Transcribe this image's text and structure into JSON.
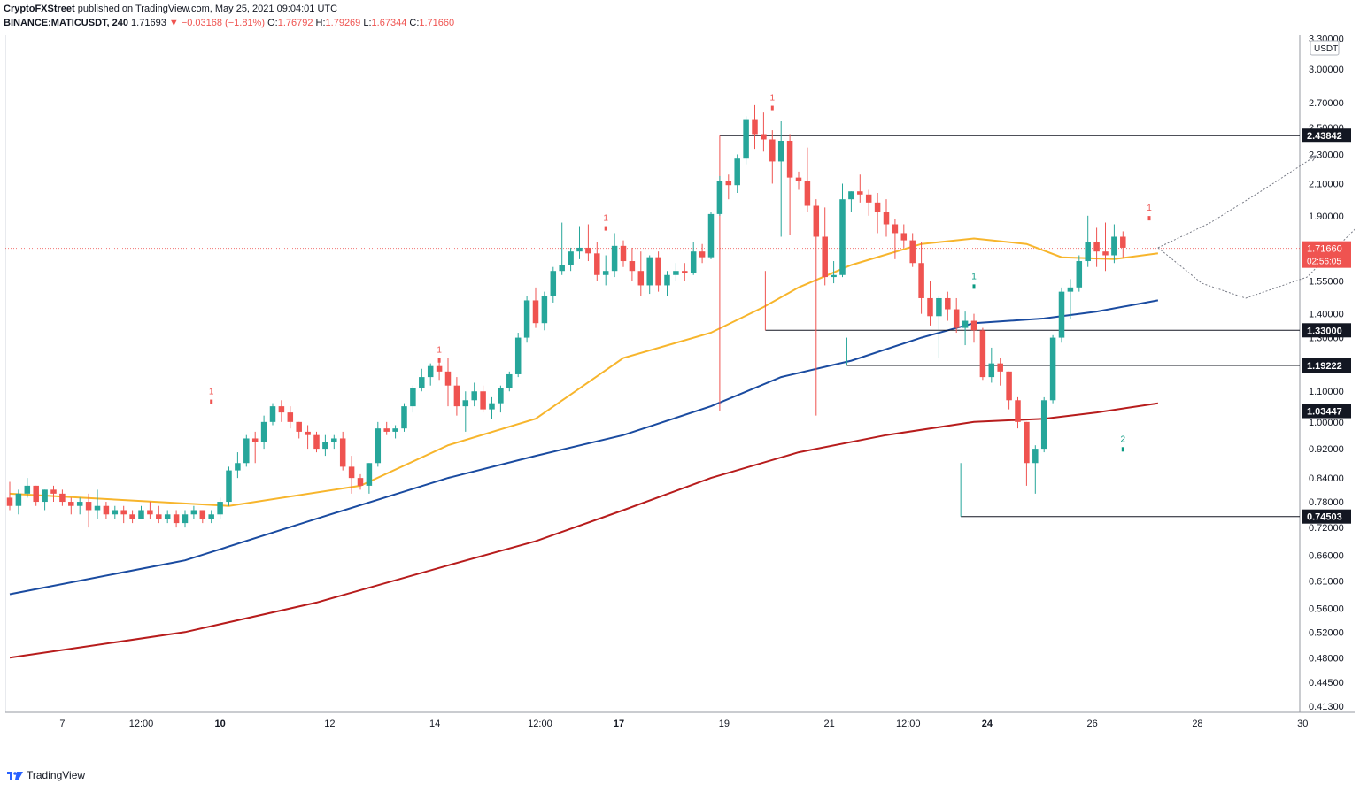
{
  "header": {
    "publisher": "CryptoFXStreet",
    "published_text": " published on TradingView.com, May 25, 2021 09:04:01 UTC",
    "symbol": "BINANCE:MATICUSDT, 240",
    "last": "1.71693",
    "change": "▼ −0.03168 (−1.81%)",
    "o_label": "O:",
    "o_value": "1.76792",
    "h_label": "H:",
    "h_value": "1.79269",
    "l_label": "L:",
    "l_value": "1.67344",
    "c_label": "C:",
    "c_value": "1.71660"
  },
  "footer": {
    "brand": "TradingView",
    "logo_icon": "tradingview-logo-icon"
  },
  "chart_data": {
    "type": "candlestick",
    "currency_label": "USDT",
    "y_scale": "log",
    "y_ticks": [
      "3.30000",
      "3.00000",
      "2.70000",
      "2.50000",
      "2.30000",
      "2.10000",
      "1.90000",
      "1.55000",
      "1.40000",
      "1.30000",
      "1.10000",
      "1.00000",
      "0.92000",
      "0.84000",
      "0.78000",
      "0.72000",
      "0.66000",
      "0.61000",
      "0.56000",
      "0.52000",
      "0.48000",
      "0.44500",
      "0.41300"
    ],
    "x_ticks": [
      "7",
      "12:00",
      "10",
      "12",
      "14",
      "12:00",
      "17",
      "19",
      "21",
      "12:00",
      "24",
      "26",
      "28",
      "30"
    ],
    "bold_x_ticks": [
      "10",
      "17",
      "24"
    ],
    "price_label": {
      "value": "1.71660",
      "countdown": "02:56:05",
      "color": "#ef5350"
    },
    "levels": [
      {
        "label": "2.43842",
        "value": 2.43842,
        "x_start": "May 19 12:00"
      },
      {
        "label": "1.33000",
        "value": 1.33,
        "x_start": "May 20 08:00"
      },
      {
        "label": "1.19222",
        "value": 1.19222,
        "x_start": "May 21 20:00"
      },
      {
        "label": "1.03447",
        "value": 1.03447,
        "x_start": "May 19 12:00"
      },
      {
        "label": "0.74503",
        "value": 0.74503,
        "x_start": "May 23 16:00"
      }
    ],
    "candle_interval_hours": 4,
    "first_candle": "May 6 00:00",
    "candles": [
      [
        0.79,
        0.83,
        0.76,
        0.77
      ],
      [
        0.77,
        0.81,
        0.75,
        0.8
      ],
      [
        0.8,
        0.84,
        0.79,
        0.82
      ],
      [
        0.82,
        0.82,
        0.77,
        0.78
      ],
      [
        0.78,
        0.81,
        0.76,
        0.81
      ],
      [
        0.81,
        0.82,
        0.78,
        0.8
      ],
      [
        0.8,
        0.81,
        0.77,
        0.78
      ],
      [
        0.78,
        0.79,
        0.75,
        0.77
      ],
      [
        0.77,
        0.79,
        0.75,
        0.78
      ],
      [
        0.78,
        0.8,
        0.72,
        0.76
      ],
      [
        0.76,
        0.81,
        0.74,
        0.77
      ],
      [
        0.77,
        0.78,
        0.74,
        0.75
      ],
      [
        0.75,
        0.77,
        0.74,
        0.76
      ],
      [
        0.76,
        0.77,
        0.73,
        0.75
      ],
      [
        0.75,
        0.76,
        0.73,
        0.74
      ],
      [
        0.74,
        0.77,
        0.74,
        0.76
      ],
      [
        0.76,
        0.78,
        0.74,
        0.75
      ],
      [
        0.75,
        0.77,
        0.73,
        0.74
      ],
      [
        0.74,
        0.76,
        0.73,
        0.75
      ],
      [
        0.75,
        0.76,
        0.72,
        0.73
      ],
      [
        0.73,
        0.76,
        0.72,
        0.75
      ],
      [
        0.75,
        0.77,
        0.74,
        0.76
      ],
      [
        0.76,
        0.76,
        0.73,
        0.74
      ],
      [
        0.74,
        0.76,
        0.73,
        0.75
      ],
      [
        0.75,
        0.79,
        0.74,
        0.78
      ],
      [
        0.78,
        0.87,
        0.77,
        0.86
      ],
      [
        0.86,
        0.91,
        0.84,
        0.88
      ],
      [
        0.88,
        0.96,
        0.87,
        0.95
      ],
      [
        0.95,
        0.97,
        0.88,
        0.94
      ],
      [
        0.94,
        1.02,
        0.92,
        1.0
      ],
      [
        1.0,
        1.06,
        0.99,
        1.05
      ],
      [
        1.05,
        1.07,
        1.0,
        1.03
      ],
      [
        1.03,
        1.05,
        0.98,
        1.0
      ],
      [
        1.0,
        1.0,
        0.95,
        0.97
      ],
      [
        0.97,
        0.99,
        0.92,
        0.96
      ],
      [
        0.96,
        0.97,
        0.91,
        0.92
      ],
      [
        0.92,
        0.96,
        0.9,
        0.94
      ],
      [
        0.94,
        0.96,
        0.92,
        0.95
      ],
      [
        0.95,
        0.97,
        0.86,
        0.87
      ],
      [
        0.87,
        0.9,
        0.8,
        0.84
      ],
      [
        0.84,
        0.85,
        0.81,
        0.82
      ],
      [
        0.82,
        0.88,
        0.8,
        0.88
      ],
      [
        0.88,
        1.0,
        0.87,
        0.98
      ],
      [
        0.98,
        1.0,
        0.96,
        0.97
      ],
      [
        0.97,
        0.99,
        0.95,
        0.98
      ],
      [
        0.98,
        1.06,
        0.97,
        1.05
      ],
      [
        1.05,
        1.12,
        1.03,
        1.11
      ],
      [
        1.11,
        1.18,
        1.1,
        1.15
      ],
      [
        1.15,
        1.2,
        1.12,
        1.19
      ],
      [
        1.19,
        1.22,
        1.14,
        1.17
      ],
      [
        1.17,
        1.22,
        1.05,
        1.12
      ],
      [
        1.12,
        1.15,
        1.02,
        1.05
      ],
      [
        1.05,
        1.1,
        0.97,
        1.07
      ],
      [
        1.07,
        1.13,
        1.05,
        1.1
      ],
      [
        1.1,
        1.12,
        1.03,
        1.04
      ],
      [
        1.04,
        1.08,
        1.01,
        1.06
      ],
      [
        1.06,
        1.12,
        1.03,
        1.11
      ],
      [
        1.11,
        1.17,
        1.1,
        1.16
      ],
      [
        1.16,
        1.32,
        1.15,
        1.3
      ],
      [
        1.3,
        1.48,
        1.28,
        1.46
      ],
      [
        1.46,
        1.52,
        1.34,
        1.36
      ],
      [
        1.36,
        1.5,
        1.33,
        1.48
      ],
      [
        1.48,
        1.62,
        1.45,
        1.6
      ],
      [
        1.6,
        1.86,
        1.58,
        1.63
      ],
      [
        1.63,
        1.72,
        1.6,
        1.7
      ],
      [
        1.7,
        1.84,
        1.66,
        1.72
      ],
      [
        1.72,
        1.85,
        1.65,
        1.69
      ],
      [
        1.69,
        1.75,
        1.55,
        1.58
      ],
      [
        1.58,
        1.68,
        1.53,
        1.6
      ],
      [
        1.6,
        1.8,
        1.57,
        1.73
      ],
      [
        1.73,
        1.76,
        1.62,
        1.65
      ],
      [
        1.65,
        1.72,
        1.55,
        1.6
      ],
      [
        1.6,
        1.7,
        1.48,
        1.53
      ],
      [
        1.53,
        1.68,
        1.49,
        1.67
      ],
      [
        1.67,
        1.7,
        1.5,
        1.53
      ],
      [
        1.53,
        1.6,
        1.48,
        1.58
      ],
      [
        1.58,
        1.64,
        1.55,
        1.6
      ],
      [
        1.6,
        1.64,
        1.55,
        1.59
      ],
      [
        1.59,
        1.75,
        1.58,
        1.7
      ],
      [
        1.7,
        1.74,
        1.64,
        1.67
      ],
      [
        1.67,
        1.92,
        1.66,
        1.91
      ],
      [
        1.91,
        2.15,
        1.9,
        2.12
      ],
      [
        2.12,
        2.16,
        2.0,
        2.09
      ],
      [
        2.09,
        2.3,
        2.04,
        2.27
      ],
      [
        2.27,
        2.59,
        2.23,
        2.56
      ],
      [
        2.56,
        2.68,
        2.34,
        2.45
      ],
      [
        2.45,
        2.62,
        2.32,
        2.41
      ],
      [
        2.41,
        2.48,
        2.1,
        2.25
      ],
      [
        2.25,
        2.55,
        1.78,
        2.4
      ],
      [
        2.4,
        2.45,
        1.79,
        2.14
      ],
      [
        2.14,
        2.18,
        2.06,
        2.12
      ],
      [
        2.12,
        2.35,
        1.92,
        1.96
      ],
      [
        1.96,
        2.0,
        1.02,
        1.78
      ],
      [
        1.78,
        1.95,
        1.53,
        1.57
      ],
      [
        1.57,
        1.65,
        1.54,
        1.58
      ],
      [
        1.58,
        2.1,
        1.57,
        2.0
      ],
      [
        2.0,
        2.05,
        1.92,
        2.05
      ],
      [
        2.05,
        2.16,
        1.98,
        2.03
      ],
      [
        2.03,
        2.06,
        1.9,
        1.98
      ],
      [
        1.98,
        2.04,
        1.8,
        1.92
      ],
      [
        1.92,
        2.0,
        1.78,
        1.85
      ],
      [
        1.85,
        1.88,
        1.66,
        1.8
      ],
      [
        1.8,
        1.85,
        1.72,
        1.76
      ],
      [
        1.76,
        1.8,
        1.62,
        1.64
      ],
      [
        1.64,
        1.75,
        1.4,
        1.47
      ],
      [
        1.47,
        1.55,
        1.35,
        1.39
      ],
      [
        1.39,
        1.48,
        1.22,
        1.47
      ],
      [
        1.47,
        1.5,
        1.37,
        1.42
      ],
      [
        1.42,
        1.47,
        1.32,
        1.34
      ],
      [
        1.34,
        1.41,
        1.27,
        1.37
      ],
      [
        1.37,
        1.4,
        1.28,
        1.33
      ],
      [
        1.33,
        1.34,
        1.14,
        1.15
      ],
      [
        1.15,
        1.26,
        1.13,
        1.2
      ],
      [
        1.2,
        1.22,
        1.12,
        1.17
      ],
      [
        1.17,
        1.17,
        1.04,
        1.07
      ],
      [
        1.07,
        1.08,
        0.98,
        1.0
      ],
      [
        1.0,
        1.0,
        0.82,
        0.88
      ],
      [
        0.88,
        0.93,
        0.8,
        0.92
      ],
      [
        0.92,
        1.08,
        0.91,
        1.07
      ],
      [
        1.07,
        1.31,
        1.06,
        1.3
      ],
      [
        1.3,
        1.52,
        1.28,
        1.5
      ],
      [
        1.5,
        1.56,
        1.38,
        1.52
      ],
      [
        1.52,
        1.68,
        1.5,
        1.65
      ],
      [
        1.65,
        1.9,
        1.62,
        1.75
      ],
      [
        1.75,
        1.83,
        1.62,
        1.7
      ],
      [
        1.7,
        1.86,
        1.6,
        1.68
      ],
      [
        1.68,
        1.85,
        1.64,
        1.78
      ],
      [
        1.78,
        1.81,
        1.67,
        1.72
      ]
    ],
    "sma_orange": {
      "color": "#f7b52c",
      "points": [
        [
          0,
          0.8
        ],
        [
          25,
          0.77
        ],
        [
          40,
          0.82
        ],
        [
          50,
          0.93
        ],
        [
          60,
          1.01
        ],
        [
          70,
          1.22
        ],
        [
          80,
          1.32
        ],
        [
          86,
          1.43
        ],
        [
          90,
          1.52
        ],
        [
          96,
          1.63
        ],
        [
          104,
          1.74
        ],
        [
          110,
          1.77
        ],
        [
          116,
          1.74
        ],
        [
          120,
          1.67
        ],
        [
          126,
          1.66
        ],
        [
          131,
          1.69
        ]
      ]
    },
    "sma_blue": {
      "color": "#1a4ba0",
      "points": [
        [
          0,
          0.585
        ],
        [
          20,
          0.65
        ],
        [
          35,
          0.74
        ],
        [
          50,
          0.84
        ],
        [
          60,
          0.9
        ],
        [
          70,
          0.96
        ],
        [
          80,
          1.05
        ],
        [
          88,
          1.15
        ],
        [
          96,
          1.21
        ],
        [
          104,
          1.3
        ],
        [
          110,
          1.36
        ],
        [
          118,
          1.38
        ],
        [
          124,
          1.41
        ],
        [
          131,
          1.46
        ]
      ]
    },
    "sma_red": {
      "color": "#b71c1c",
      "points": [
        [
          0,
          0.48
        ],
        [
          20,
          0.52
        ],
        [
          35,
          0.57
        ],
        [
          50,
          0.64
        ],
        [
          60,
          0.69
        ],
        [
          70,
          0.76
        ],
        [
          80,
          0.84
        ],
        [
          90,
          0.91
        ],
        [
          100,
          0.96
        ],
        [
          110,
          1.0
        ],
        [
          118,
          1.01
        ],
        [
          124,
          1.03
        ],
        [
          131,
          1.06
        ]
      ]
    },
    "projection_1": {
      "points": [
        [
          131,
          1.72
        ],
        [
          137,
          1.86
        ],
        [
          143,
          2.06
        ],
        [
          149,
          2.29
        ]
      ]
    },
    "projection_2": {
      "points": [
        [
          131,
          1.72
        ],
        [
          136,
          1.54
        ],
        [
          141,
          1.47
        ],
        [
          148,
          1.57
        ],
        [
          155,
          1.9
        ],
        [
          162,
          2.35
        ]
      ]
    },
    "markers": [
      {
        "c": 23,
        "label": "1",
        "color": "#ef5350",
        "value": 1.09
      },
      {
        "c": 49,
        "label": "1",
        "color": "#ef5350",
        "value": 1.24
      },
      {
        "c": 68,
        "label": "1",
        "color": "#ef5350",
        "value": 1.87
      },
      {
        "c": 87,
        "label": "1",
        "color": "#ef5350",
        "value": 2.72
      },
      {
        "c": 110,
        "label": "1",
        "color": "#089981",
        "value": 1.56
      },
      {
        "c": 127,
        "label": "2",
        "color": "#089981",
        "value": 0.94
      },
      {
        "c": 130,
        "label": "1",
        "color": "#ef5350",
        "value": 1.93
      }
    ]
  }
}
